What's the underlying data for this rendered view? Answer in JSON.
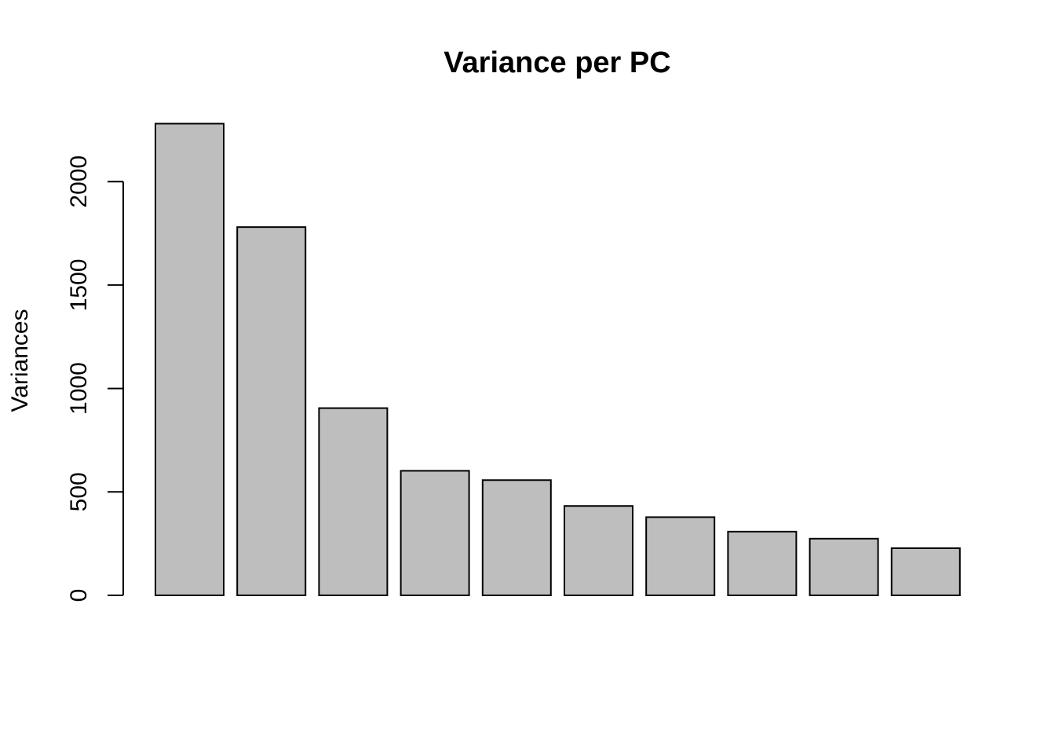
{
  "chart_data": {
    "type": "bar",
    "title": "Variance per PC",
    "xlabel": "",
    "ylabel": "Variances",
    "categories": [
      "",
      "",
      "",
      "",
      "",
      "",
      "",
      "",
      "",
      ""
    ],
    "values": [
      2280,
      1780,
      905,
      602,
      557,
      432,
      378,
      308,
      274,
      228
    ],
    "ylim": [
      0,
      2280
    ],
    "yticks": [
      0,
      500,
      1000,
      1500,
      2000
    ],
    "ytick_labels": [
      "0",
      "500",
      "1000",
      "1500",
      "2000"
    ],
    "bar_color": "#bebebe",
    "grid": false
  }
}
